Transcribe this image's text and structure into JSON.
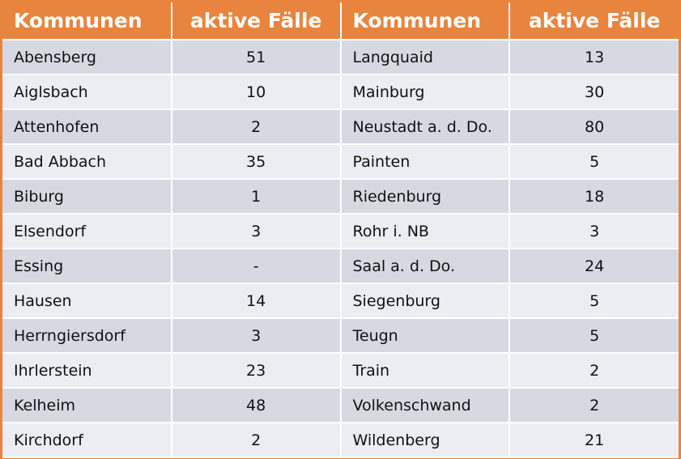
{
  "headers": [
    "Kommunen",
    "aktive Fälle",
    "Kommunen",
    "aktive Fälle"
  ],
  "rows": [
    [
      "Abensberg",
      "51",
      "Langquaid",
      "13"
    ],
    [
      "Aiglsbach",
      "10",
      "Mainburg",
      "30"
    ],
    [
      "Attenhofen",
      "2",
      "Neustadt a. d. Do.",
      "80"
    ],
    [
      "Bad Abbach",
      "35",
      "Painten",
      "5"
    ],
    [
      "Biburg",
      "1",
      "Riedenburg",
      "18"
    ],
    [
      "Elsendorf",
      "3",
      "Rohr i. NB",
      "3"
    ],
    [
      "Essing",
      "-",
      "Saal a. d. Do.",
      "24"
    ],
    [
      "Hausen",
      "14",
      "Siegenburg",
      "5"
    ],
    [
      "Herrngiersdorf",
      "3",
      "Teugn",
      "5"
    ],
    [
      "Ihrlerstein",
      "23",
      "Train",
      "2"
    ],
    [
      "Kelheim",
      "48",
      "Volkenschwand",
      "2"
    ],
    [
      "Kirchdorf",
      "2",
      "Wildenberg",
      "21"
    ]
  ]
}
